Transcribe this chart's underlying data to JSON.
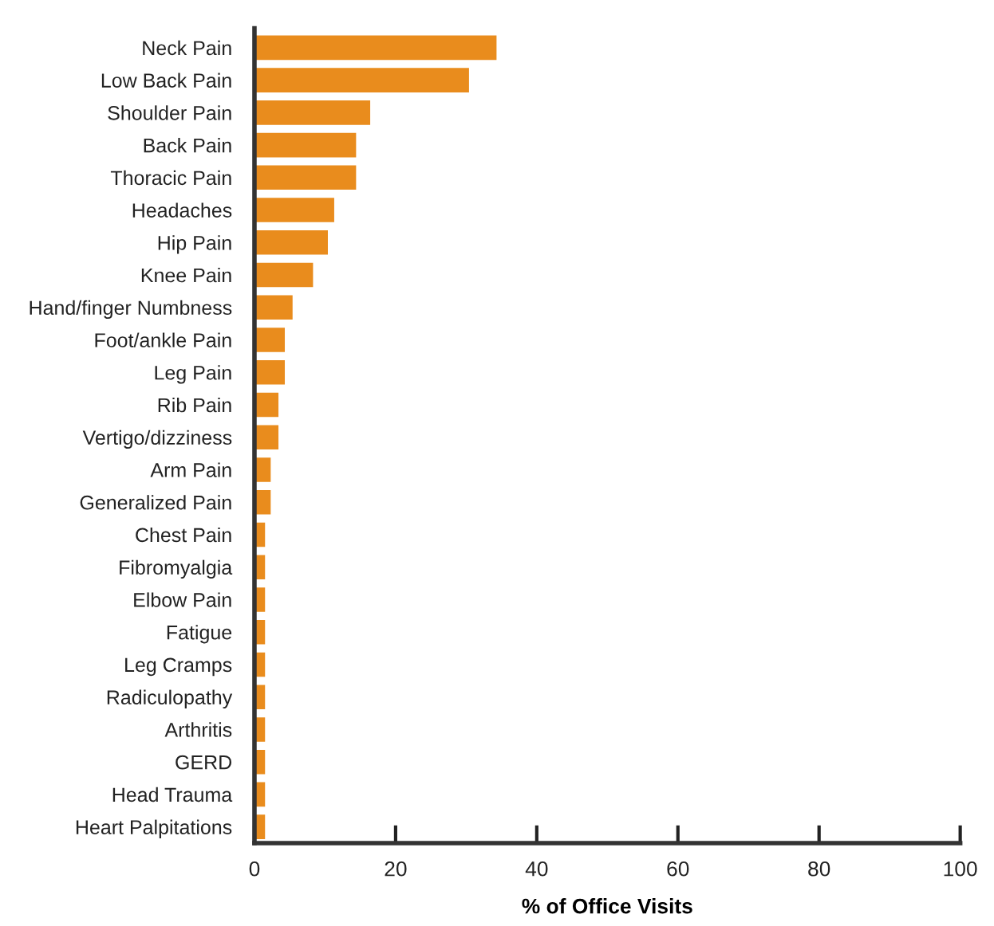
{
  "chart_data": {
    "type": "bar",
    "orientation": "horizontal",
    "xlabel": "% of Office Visits",
    "categories": [
      "Neck Pain",
      "Low Back Pain",
      "Shoulder Pain",
      "Back Pain",
      "Thoracic Pain",
      "Headaches",
      "Hip Pain",
      "Knee Pain",
      "Hand/finger Numbness",
      "Foot/ankle Pain",
      "Leg Pain",
      "Rib Pain",
      "Vertigo/dizziness",
      "Arm Pain",
      "Generalized Pain",
      "Chest Pain",
      "Fibromyalgia",
      "Elbow Pain",
      "Fatigue",
      "Leg Cramps",
      "Radiculopathy",
      "Arthritis",
      "GERD",
      "Head Trauma",
      "Heart Palpitations"
    ],
    "values": [
      34.3,
      30.4,
      16.4,
      14.4,
      14.4,
      11.3,
      10.4,
      8.3,
      5.4,
      4.3,
      4.3,
      3.4,
      3.4,
      2.3,
      2.3,
      1.5,
      1.5,
      1.5,
      1.5,
      1.5,
      1.5,
      1.5,
      1.5,
      1.5,
      1.5
    ],
    "color": "#e98c1d",
    "xlim": [
      0,
      100
    ],
    "xticks": [
      0,
      20,
      40,
      60,
      80,
      100
    ],
    "grid": false,
    "legend": false
  }
}
